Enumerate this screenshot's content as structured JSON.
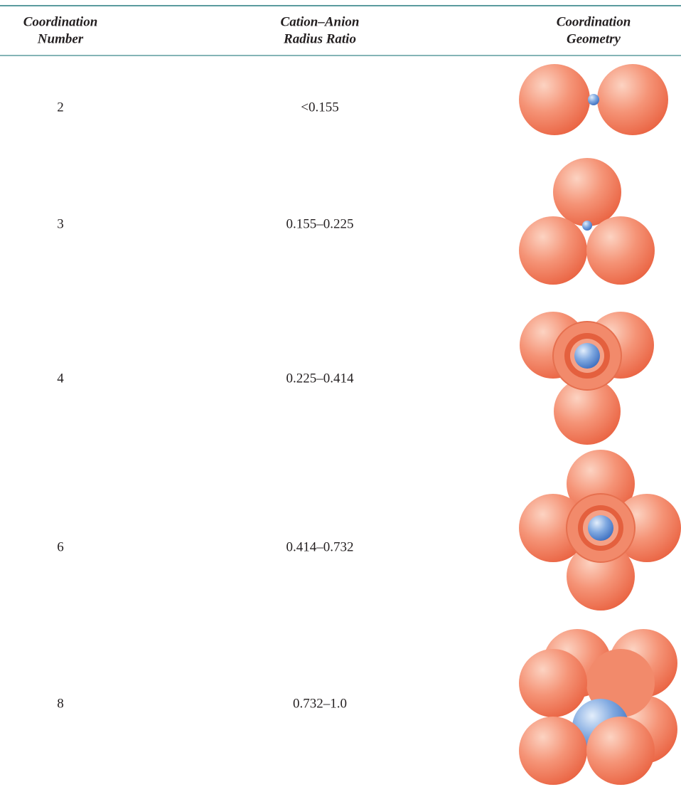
{
  "table": {
    "header": [
      [
        "Coordination",
        "Number"
      ],
      [
        "Cation–Anion",
        "Radius Ratio"
      ],
      [
        "Coordination",
        "Geometry"
      ]
    ],
    "rows": [
      [
        "2",
        "<0.155"
      ],
      [
        "3",
        "0.155–0.225"
      ],
      [
        "4",
        "0.225–0.414"
      ],
      [
        "6",
        "0.414–0.732"
      ],
      [
        "8",
        "0.732–1.0"
      ]
    ]
  }
}
